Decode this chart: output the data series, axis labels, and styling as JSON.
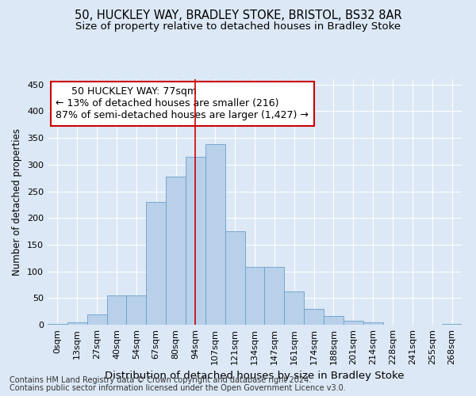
{
  "title1": "50, HUCKLEY WAY, BRADLEY STOKE, BRISTOL, BS32 8AR",
  "title2": "Size of property relative to detached houses in Bradley Stoke",
  "xlabel": "Distribution of detached houses by size in Bradley Stoke",
  "ylabel": "Number of detached properties",
  "footnote1": "Contains HM Land Registry data © Crown copyright and database right 2024.",
  "footnote2": "Contains public sector information licensed under the Open Government Licence v3.0.",
  "annotation_line1": "50 HUCKLEY WAY: 77sqm",
  "annotation_line2": "← 13% of detached houses are smaller (216)",
  "annotation_line3": "87% of semi-detached houses are larger (1,427) →",
  "bar_categories": [
    "0sqm",
    "13sqm",
    "27sqm",
    "40sqm",
    "54sqm",
    "67sqm",
    "80sqm",
    "94sqm",
    "107sqm",
    "121sqm",
    "134sqm",
    "147sqm",
    "161sqm",
    "174sqm",
    "188sqm",
    "201sqm",
    "214sqm",
    "228sqm",
    "241sqm",
    "255sqm",
    "268sqm"
  ],
  "bar_values": [
    2,
    5,
    20,
    55,
    55,
    230,
    278,
    315,
    338,
    175,
    109,
    109,
    62,
    30,
    16,
    7,
    4,
    0,
    0,
    0,
    2
  ],
  "bar_color": "#b8d0ea",
  "bar_edge_color": "#6a9fc8",
  "vline_color": "#cc0000",
  "vline_x": 7.0,
  "ylim": [
    0,
    460
  ],
  "yticks": [
    0,
    50,
    100,
    150,
    200,
    250,
    300,
    350,
    400,
    450
  ],
  "bg_color": "#dce8f5",
  "plot_bg_color": "#dce8f5",
  "annotation_box_color": "#ffffff",
  "annotation_box_edge": "#cc0000",
  "title1_fontsize": 10.5,
  "title2_fontsize": 9.5,
  "xlabel_fontsize": 9.5,
  "ylabel_fontsize": 8.5,
  "tick_fontsize": 8,
  "annot_fontsize": 9,
  "footnote_fontsize": 7
}
